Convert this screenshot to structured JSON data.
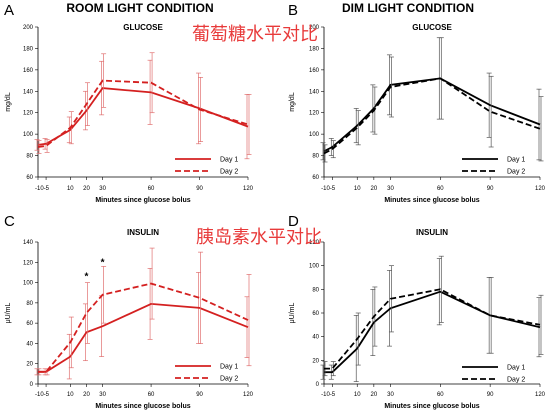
{
  "figure": {
    "left_condition_title": "ROOM LIGHT CONDITION",
    "right_condition_title": "DIM LIGHT CONDITION"
  },
  "overlays": {
    "top": "葡萄糖水平对比",
    "bottom": "胰岛素水平对比"
  },
  "colors": {
    "room_light": "#d42020",
    "dim_light": "#000000",
    "error_room": "#e07070",
    "error_dim": "#555555",
    "overlay_text": "#e83a3a"
  },
  "chart_data": [
    {
      "panel": "A",
      "type": "line",
      "title": "GLUCOSE",
      "ylabel": "mg/dL",
      "xlabel": "Minutes since glucose bolus",
      "ylim": [
        60,
        200
      ],
      "yticks": [
        60,
        80,
        100,
        120,
        140,
        160,
        180,
        200
      ],
      "xlim": [
        -10,
        120
      ],
      "xticks": [
        -10,
        -5,
        10,
        20,
        30,
        60,
        90,
        120
      ],
      "xticklabels": [
        "-10-5",
        "",
        "10",
        "20",
        "30",
        "60",
        "90",
        "120"
      ],
      "x": [
        -10,
        -5,
        10,
        20,
        30,
        60,
        90,
        120
      ],
      "color": "#d42020",
      "error_color": "#e07070",
      "legend_position": "bottom-right",
      "series": [
        {
          "name": "Day 1",
          "dash": "solid",
          "values": [
            90,
            91,
            104,
            122,
            143,
            139,
            124,
            107
          ],
          "errors": [
            5,
            5,
            12,
            18,
            25,
            30,
            33,
            30
          ]
        },
        {
          "name": "Day 2",
          "dash": "dashed",
          "values": [
            88,
            89,
            106,
            128,
            150,
            148,
            123,
            109
          ],
          "errors": [
            6,
            6,
            15,
            20,
            25,
            28,
            30,
            28
          ]
        }
      ],
      "annotations": []
    },
    {
      "panel": "B",
      "type": "line",
      "title": "GLUCOSE",
      "ylabel": "mg/dL",
      "xlabel": "Minutes since glucose bolus",
      "ylim": [
        60,
        200
      ],
      "yticks": [
        60,
        80,
        100,
        120,
        140,
        160,
        180,
        200
      ],
      "xlim": [
        -10,
        120
      ],
      "xticks": [
        -10,
        -5,
        10,
        20,
        30,
        60,
        90,
        120
      ],
      "xticklabels": [
        "-10-5",
        "",
        "10",
        "20",
        "30",
        "60",
        "90",
        "120"
      ],
      "x": [
        -10,
        -5,
        10,
        20,
        30,
        60,
        90,
        120
      ],
      "color": "#000000",
      "error_color": "#555555",
      "legend_position": "bottom-right",
      "series": [
        {
          "name": "Day 1",
          "dash": "solid",
          "values": [
            84,
            88,
            108,
            124,
            146,
            152,
            127,
            109
          ],
          "errors": [
            8,
            8,
            16,
            22,
            28,
            38,
            30,
            33
          ]
        },
        {
          "name": "Day 2",
          "dash": "dashed",
          "values": [
            82,
            86,
            106,
            122,
            144,
            152,
            121,
            105
          ],
          "errors": [
            8,
            8,
            16,
            22,
            28,
            38,
            33,
            30
          ]
        }
      ],
      "annotations": []
    },
    {
      "panel": "C",
      "type": "line",
      "title": "INSULIN",
      "ylabel": "μU/mL",
      "xlabel": "Minutes since glucose bolus",
      "ylim": [
        0,
        140
      ],
      "yticks": [
        0,
        20,
        40,
        60,
        80,
        100,
        120,
        140
      ],
      "xlim": [
        -10,
        120
      ],
      "xticks": [
        -10,
        -5,
        10,
        20,
        30,
        60,
        90,
        120
      ],
      "xticklabels": [
        "-10-5",
        "",
        "10",
        "20",
        "30",
        "60",
        "90",
        "120"
      ],
      "x": [
        -10,
        -5,
        10,
        20,
        30,
        60,
        90,
        120
      ],
      "color": "#d42020",
      "error_color": "#e07070",
      "legend_position": "bottom-right",
      "series": [
        {
          "name": "Day 1",
          "dash": "solid",
          "values": [
            12,
            12,
            27,
            51,
            57,
            79,
            75,
            56
          ],
          "errors": [
            3,
            3,
            22,
            28,
            30,
            35,
            35,
            30
          ]
        },
        {
          "name": "Day 2",
          "dash": "dashed",
          "values": [
            12,
            12,
            41,
            70,
            88,
            99,
            85,
            63
          ],
          "errors": [
            3,
            3,
            25,
            30,
            28,
            35,
            45,
            45
          ]
        }
      ],
      "annotations": [
        {
          "text": "*",
          "x": 20,
          "y": 103
        },
        {
          "text": "*",
          "x": 30,
          "y": 117
        }
      ]
    },
    {
      "panel": "D",
      "type": "line",
      "title": "INSULIN",
      "ylabel": "μU/mL",
      "xlabel": "Minutes since glucose bolus",
      "ylim": [
        0,
        120
      ],
      "yticks": [
        0,
        20,
        40,
        60,
        80,
        100,
        120
      ],
      "xlim": [
        -10,
        120
      ],
      "xticks": [
        -10,
        -5,
        10,
        20,
        30,
        60,
        90,
        120
      ],
      "xticklabels": [
        "-10-5",
        "",
        "10",
        "20",
        "30",
        "60",
        "90",
        "120"
      ],
      "x": [
        -10,
        -5,
        10,
        20,
        30,
        60,
        90,
        120
      ],
      "color": "#000000",
      "error_color": "#555555",
      "legend_position": "bottom-right",
      "series": [
        {
          "name": "Day 1",
          "dash": "solid",
          "values": [
            10,
            10,
            30,
            52,
            64,
            78,
            58,
            48
          ],
          "errors": [
            6,
            6,
            28,
            28,
            32,
            28,
            32,
            25
          ]
        },
        {
          "name": "Day 2",
          "dash": "dashed",
          "values": [
            13,
            13,
            38,
            57,
            72,
            80,
            58,
            50
          ],
          "errors": [
            6,
            6,
            22,
            25,
            28,
            28,
            32,
            25
          ]
        }
      ],
      "annotations": []
    }
  ]
}
